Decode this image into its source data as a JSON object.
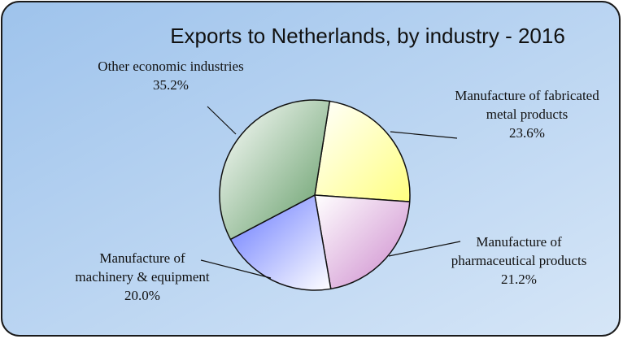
{
  "chart_data": {
    "type": "pie",
    "title": "Exports to  Netherlands, by industry - 2016",
    "categories": [
      "Manufacture of fabricated metal products",
      "Manufacture of pharmaceutical products",
      "Manufacture of machinery & equipment",
      "Other economic industries"
    ],
    "values": [
      23.6,
      21.2,
      20.0,
      35.2
    ],
    "value_labels": [
      "23.6%",
      "21.2%",
      "20.0%",
      "35.2%"
    ],
    "colors": [
      "#ffff80",
      "#cc88cc",
      "#6677ff",
      "#5f9a63"
    ]
  }
}
